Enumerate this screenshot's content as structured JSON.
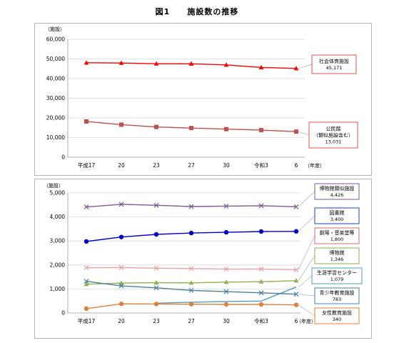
{
  "figure": {
    "title": "図1　　施設数の推移"
  },
  "chart_data": [
    {
      "type": "line",
      "unit_label": "（施設）",
      "categories": [
        "平成17",
        "20",
        "23",
        "27",
        "30",
        "令和3",
        "6"
      ],
      "year_suffix": "（年度）",
      "ylim": [
        0,
        60000
      ],
      "yticks": [
        "0",
        "10,000",
        "20,000",
        "30,000",
        "40,000",
        "50,000",
        "60,000"
      ],
      "ytick_values": [
        0,
        10000,
        20000,
        30000,
        40000,
        50000,
        60000
      ],
      "grid": true,
      "series": [
        {
          "name": "社会体育施設",
          "value_label": "45,171",
          "color": "#ff0000",
          "marker": "triangle",
          "values": [
            48055,
            47925,
            47571,
            47536,
            46981,
            45658,
            45171
          ],
          "label_box": {
            "border": "#e05050",
            "lines": [
              "社会体育施設",
              "45,171"
            ]
          }
        },
        {
          "name": "公民館（類似施設含む）",
          "value_label": "13,031",
          "color": "#c0504d",
          "marker": "square",
          "values": [
            18182,
            16566,
            15399,
            14841,
            14281,
            13798,
            13031
          ],
          "label_box": {
            "border": "#e05050",
            "lines": [
              "公民館",
              "（類似施設含む）",
              "13,031"
            ]
          }
        }
      ]
    },
    {
      "type": "line",
      "unit_label": "（施設）",
      "categories": [
        "平成17",
        "20",
        "23",
        "27",
        "30",
        "令和3",
        "6"
      ],
      "year_suffix": "（年度）",
      "ylim": [
        0,
        5000
      ],
      "yticks": [
        "0",
        "1,000",
        "2,000",
        "3,000",
        "4,000",
        "5,000"
      ],
      "ytick_values": [
        0,
        1000,
        2000,
        3000,
        4000,
        5000
      ],
      "grid": true,
      "series": [
        {
          "name": "博物館類似施設",
          "value_label": "4,426",
          "color": "#7a5a99",
          "marker": "x",
          "values": [
            4418,
            4527,
            4485,
            4434,
            4452,
            4466,
            4426
          ],
          "label_box": {
            "border": "#7a5a99",
            "lines": [
              "博物館類似施設",
              "4,426"
            ]
          }
        },
        {
          "name": "図書館",
          "value_label": "3,400",
          "color": "#0000cc",
          "marker": "circle",
          "values": [
            2979,
            3165,
            3274,
            3331,
            3360,
            3394,
            3400
          ],
          "label_box": {
            "border": "#1f3fbf",
            "lines": [
              "図書館",
              "3,400"
            ]
          }
        },
        {
          "name": "劇場・音楽堂等",
          "value_label": "1,800",
          "color": "#e6a3a3",
          "marker": "x",
          "values": [
            1885,
            1893,
            1866,
            1851,
            1827,
            1832,
            1800
          ],
          "label_box": {
            "border": "#d07070",
            "lines": [
              "劇場・音楽堂等",
              "1,800"
            ]
          }
        },
        {
          "name": "博物館",
          "value_label": "1,346",
          "color": "#8fb050",
          "marker": "triangle",
          "values": [
            1196,
            1248,
            1262,
            1256,
            1286,
            1305,
            1346
          ],
          "label_box": {
            "border": "#8fb050",
            "lines": [
              "博物館",
              "1,346"
            ]
          }
        },
        {
          "name": "生涯学習センター",
          "value_label": "1,079",
          "color": "#4a9fc0",
          "marker": "none",
          "values": [
            null,
            null,
            409,
            449,
            478,
            496,
            1079
          ],
          "label_box": {
            "border": "#4a9fc0",
            "lines": [
              "生涯学習センター",
              "1,079"
            ]
          }
        },
        {
          "name": "青少年教育施設",
          "value_label": "783",
          "color": "#4a7fa0",
          "marker": "x",
          "values": [
            1320,
            1129,
            1048,
            941,
            891,
            840,
            783
          ],
          "label_box": {
            "border": "#4a7fa0",
            "lines": [
              "青少年教育施設",
              "783"
            ]
          }
        },
        {
          "name": "女性教育施設",
          "value_label": "340",
          "color": "#e0803a",
          "marker": "circle",
          "values": [
            183,
            380,
            375,
            367,
            358,
            358,
            340
          ],
          "label_box": {
            "border": "#e0803a",
            "lines": [
              "女性教育施設",
              "340"
            ]
          }
        }
      ]
    }
  ]
}
